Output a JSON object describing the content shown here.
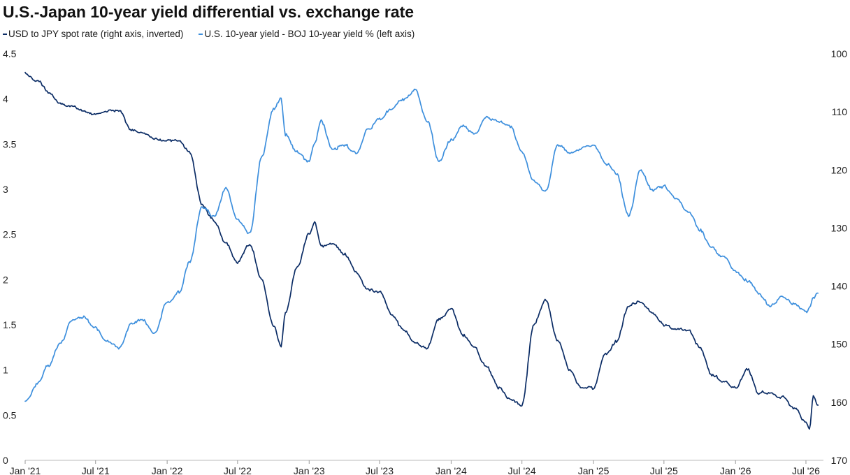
{
  "chart_data": {
    "type": "line",
    "title": "U.S.-Japan 10-year yield differential vs. exchange rate",
    "grid": false,
    "legend_position": "top-left",
    "x_axis": {
      "type": "date",
      "range": [
        "2021-01-01",
        "2026-08-15"
      ],
      "tick_labels": [
        "Jan '21",
        "Jul '21",
        "Jan '22",
        "Jul '22",
        "Jan '23",
        "Jul '23",
        "Jan '24",
        "Jul '24",
        "Jan '25",
        "Jul '25",
        "Jan '26",
        "Jul '26"
      ],
      "tick_dates": [
        "2021-01-01",
        "2021-07-01",
        "2022-01-01",
        "2022-07-01",
        "2023-01-01",
        "2023-07-01",
        "2024-01-01",
        "2024-07-01",
        "2025-01-01",
        "2025-07-01",
        "2026-01-01",
        "2026-07-01"
      ]
    },
    "y_left": {
      "label": "",
      "range": [
        0,
        4.5
      ],
      "ticks": [
        0,
        0.5,
        1,
        1.5,
        2,
        2.5,
        3,
        3.5,
        4,
        4.5
      ],
      "tick_labels": [
        "0",
        "0.5",
        "1",
        "1.5",
        "2",
        "2.5",
        "3",
        "3.5",
        "4",
        "4.5"
      ]
    },
    "y_right": {
      "label": "",
      "inverted": true,
      "range": [
        100,
        170
      ],
      "ticks": [
        100,
        110,
        120,
        130,
        140,
        150,
        160,
        170
      ],
      "tick_labels": [
        "100",
        "110",
        "120",
        "130",
        "140",
        "150",
        "160",
        "170"
      ]
    },
    "series": [
      {
        "name": "USD to JPY spot rate (right axis, inverted)",
        "color": "#0b2c65",
        "axis": "right",
        "x": [
          "2021-01-01",
          "2021-02-01",
          "2021-03-01",
          "2021-04-01",
          "2021-05-01",
          "2021-06-01",
          "2021-07-01",
          "2021-08-01",
          "2021-09-01",
          "2021-10-01",
          "2021-11-01",
          "2021-12-01",
          "2022-01-01",
          "2022-02-01",
          "2022-03-01",
          "2022-04-01",
          "2022-05-01",
          "2022-06-01",
          "2022-07-01",
          "2022-08-01",
          "2022-09-01",
          "2022-10-01",
          "2022-10-21",
          "2022-11-01",
          "2022-12-01",
          "2023-01-01",
          "2023-01-15",
          "2023-02-01",
          "2023-03-01",
          "2023-04-01",
          "2023-05-01",
          "2023-06-01",
          "2023-07-01",
          "2023-08-01",
          "2023-09-01",
          "2023-10-01",
          "2023-11-01",
          "2023-12-01",
          "2024-01-01",
          "2024-02-01",
          "2024-03-01",
          "2024-04-01",
          "2024-05-01",
          "2024-06-01",
          "2024-07-01",
          "2024-08-01",
          "2024-09-01",
          "2024-10-01",
          "2024-11-01",
          "2024-12-01",
          "2025-01-01",
          "2025-02-01",
          "2025-03-01",
          "2025-04-01",
          "2025-05-01",
          "2025-06-01",
          "2025-07-01",
          "2025-08-01",
          "2025-09-01",
          "2025-10-01",
          "2025-11-01",
          "2025-12-01",
          "2026-01-01",
          "2026-02-01",
          "2026-03-01",
          "2026-04-01",
          "2026-05-01",
          "2026-06-01",
          "2026-07-01",
          "2026-07-10",
          "2026-07-20",
          "2026-08-01"
        ],
        "values": [
          103.5,
          104.6,
          106.5,
          108.5,
          108.9,
          109.8,
          110.2,
          110.0,
          110.0,
          113.2,
          113.3,
          114.6,
          115.0,
          115.0,
          117.0,
          126.0,
          128.5,
          132.5,
          135.7,
          132.7,
          138.8,
          146.5,
          150.5,
          144.5,
          136.5,
          130.8,
          129.0,
          133.0,
          132.5,
          134.5,
          137.5,
          140.5,
          141.2,
          144.9,
          147.6,
          149.8,
          150.5,
          145.8,
          144.0,
          148.5,
          150.5,
          153.8,
          157.5,
          159.7,
          160.6,
          146.5,
          142.5,
          149.5,
          154.5,
          157.5,
          157.5,
          151.5,
          149.5,
          143.5,
          142.7,
          144.5,
          146.5,
          147.5,
          147.8,
          150.5,
          155.5,
          156.5,
          157.5,
          154.2,
          158.5,
          158.5,
          159.0,
          161.0,
          163.5,
          164.8,
          159.0,
          160.5
        ]
      },
      {
        "name": "U.S. 10-year yield - BOJ 10-year yield % (left axis)",
        "color": "#3d8fdd",
        "axis": "left",
        "x": [
          "2021-01-01",
          "2021-02-01",
          "2021-03-01",
          "2021-04-01",
          "2021-05-01",
          "2021-06-01",
          "2021-07-01",
          "2021-08-01",
          "2021-09-01",
          "2021-10-01",
          "2021-11-01",
          "2021-12-01",
          "2022-01-01",
          "2022-02-01",
          "2022-03-01",
          "2022-04-01",
          "2022-05-01",
          "2022-06-01",
          "2022-07-01",
          "2022-08-01",
          "2022-09-01",
          "2022-10-01",
          "2022-10-21",
          "2022-11-01",
          "2022-12-01",
          "2023-01-01",
          "2023-01-15",
          "2023-02-01",
          "2023-03-01",
          "2023-04-01",
          "2023-05-01",
          "2023-06-01",
          "2023-07-01",
          "2023-08-01",
          "2023-09-01",
          "2023-10-01",
          "2023-11-01",
          "2023-12-01",
          "2024-01-01",
          "2024-02-01",
          "2024-03-01",
          "2024-04-01",
          "2024-05-01",
          "2024-06-01",
          "2024-07-01",
          "2024-08-01",
          "2024-09-01",
          "2024-10-01",
          "2024-11-01",
          "2024-12-01",
          "2025-01-01",
          "2025-02-01",
          "2025-03-01",
          "2025-04-01",
          "2025-05-01",
          "2025-06-01",
          "2025-07-01",
          "2025-08-01",
          "2025-09-01",
          "2025-10-01",
          "2025-11-01",
          "2025-12-01",
          "2026-01-01",
          "2026-02-01",
          "2026-03-01",
          "2026-04-01",
          "2026-05-01",
          "2026-06-01",
          "2026-07-01",
          "2026-07-10",
          "2026-07-20",
          "2026-08-01"
        ],
        "values": [
          0.65,
          0.85,
          1.05,
          1.3,
          1.55,
          1.6,
          1.45,
          1.3,
          1.25,
          1.52,
          1.55,
          1.4,
          1.75,
          1.85,
          2.2,
          2.8,
          2.7,
          3.0,
          2.65,
          2.5,
          3.35,
          3.9,
          4.0,
          3.6,
          3.4,
          3.3,
          3.5,
          3.75,
          3.45,
          3.5,
          3.4,
          3.65,
          3.78,
          3.9,
          4.0,
          4.1,
          3.75,
          3.3,
          3.55,
          3.7,
          3.6,
          3.8,
          3.75,
          3.7,
          3.4,
          3.1,
          3.0,
          3.5,
          3.4,
          3.45,
          3.5,
          3.3,
          3.2,
          2.7,
          3.2,
          3.0,
          3.05,
          2.9,
          2.75,
          2.55,
          2.35,
          2.25,
          2.1,
          2.0,
          1.85,
          1.7,
          1.8,
          1.72,
          1.65,
          1.7,
          1.8,
          1.85
        ]
      }
    ]
  }
}
